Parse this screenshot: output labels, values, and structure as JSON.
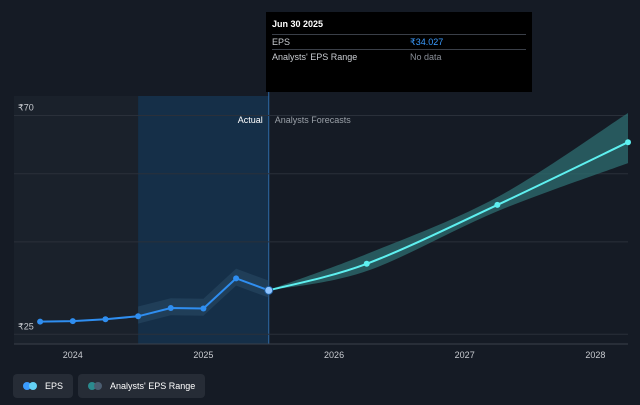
{
  "chart_data": {
    "type": "line",
    "y_axis": {
      "ticks": [
        {
          "label": "₹70",
          "value": 70
        },
        {
          "label": "₹25",
          "value": 25
        }
      ],
      "ylim": [
        23,
        74
      ]
    },
    "x_axis": {
      "ticks": [
        {
          "label": "2024",
          "value": 2024.0
        },
        {
          "label": "2025",
          "value": 2025.0
        },
        {
          "label": "2026",
          "value": 2026.0
        },
        {
          "label": "2027",
          "value": 2027.0
        },
        {
          "label": "2028",
          "value": 2028.0
        }
      ],
      "xlim": [
        2023.55,
        2028.25
      ]
    },
    "regions": {
      "actual_label": "Actual",
      "forecast_label": "Analysts Forecasts",
      "split_x": 2025.5,
      "highlight_start": 2024.5
    },
    "series": [
      {
        "name": "EPS",
        "color": "#2f8ef0",
        "points": [
          {
            "x": 2023.75,
            "y": 27.6
          },
          {
            "x": 2024.0,
            "y": 27.7
          },
          {
            "x": 2024.25,
            "y": 28.1
          },
          {
            "x": 2024.5,
            "y": 28.7
          },
          {
            "x": 2024.75,
            "y": 30.4
          },
          {
            "x": 2025.0,
            "y": 30.3
          },
          {
            "x": 2025.25,
            "y": 36.5
          },
          {
            "x": 2025.5,
            "y": 34.027
          }
        ]
      },
      {
        "name": "Analysts' EPS Range",
        "color": "#5ef0f0",
        "band_color": "#2d6d70",
        "points": [
          {
            "x": 2025.5,
            "y": 34.027
          },
          {
            "x": 2026.25,
            "y": 39.5
          },
          {
            "x": 2027.25,
            "y": 51.6
          },
          {
            "x": 2028.25,
            "y": 64.5
          }
        ],
        "band": [
          {
            "x": 2025.5,
            "low": 34.0,
            "high": 34.1
          },
          {
            "x": 2026.25,
            "low": 38.0,
            "high": 41.5
          },
          {
            "x": 2027.25,
            "low": 50.3,
            "high": 53.2
          },
          {
            "x": 2028.25,
            "low": 60.2,
            "high": 70.5
          }
        ]
      }
    ]
  },
  "tooltip": {
    "date": "Jun 30 2025",
    "rows": [
      {
        "label": "EPS",
        "value": "₹34.027"
      },
      {
        "label": "Analysts' EPS Range",
        "value": "No data"
      }
    ]
  },
  "legend": [
    {
      "label": "EPS",
      "colors": [
        "#3b9cff",
        "#64d2f5"
      ]
    },
    {
      "label": "Analysts' EPS Range",
      "colors": [
        "#2a8a8e",
        "#4b5d70"
      ]
    }
  ]
}
